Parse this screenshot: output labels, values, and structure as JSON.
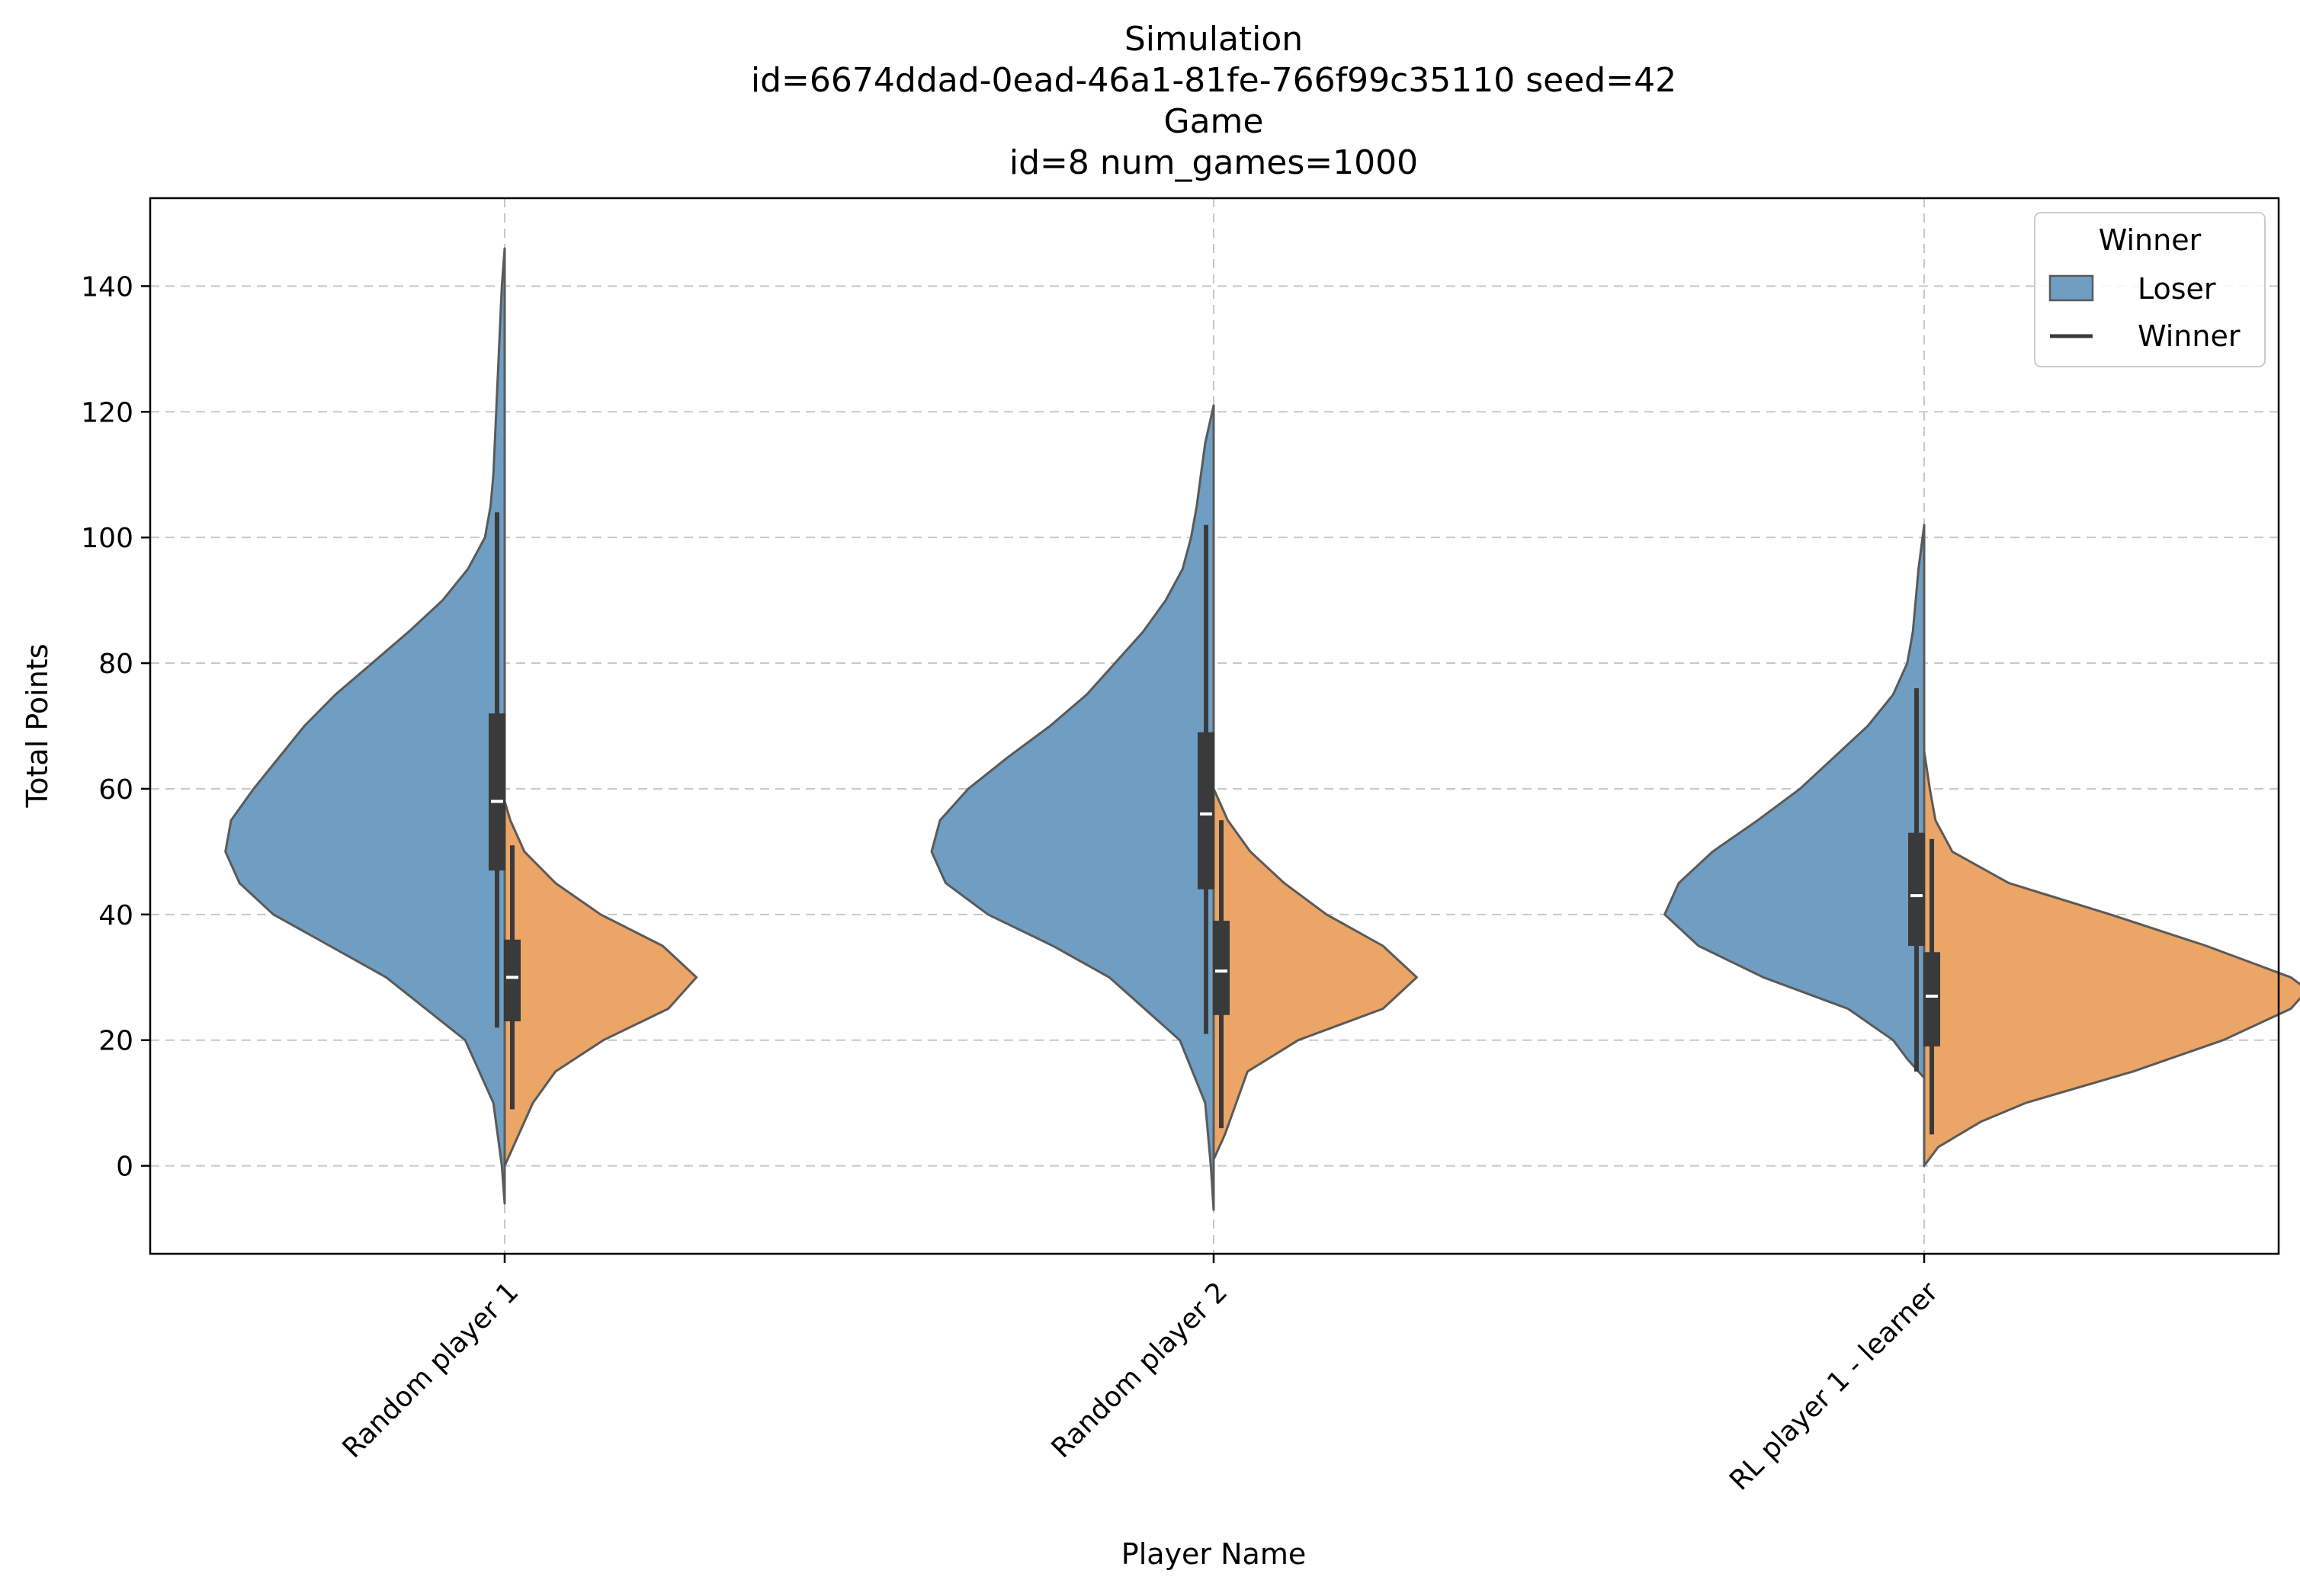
{
  "chart_data": {
    "type": "violin",
    "split": true,
    "title_lines": [
      "Simulation",
      "id=6674ddad-0ead-46a1-81fe-766f99c35110 seed=42",
      "Game",
      "id=8 num_games=1000"
    ],
    "xlabel": "Player Name",
    "ylabel": "Total Points",
    "categories": [
      "Random player 1",
      "Random player 2",
      "RL player 1 - learner"
    ],
    "ylim": [
      -14,
      154
    ],
    "yticks": [
      0,
      20,
      40,
      60,
      80,
      100,
      120,
      140
    ],
    "grid": true,
    "legend": {
      "title": "Winner",
      "position": "top-right",
      "entries": [
        {
          "label": "Loser",
          "kind": "patch"
        },
        {
          "label": "Winner",
          "kind": "line"
        }
      ]
    },
    "colors": {
      "loser": "#6f9ec2",
      "winner": "#eba566",
      "outline": "#5a5a5a",
      "box": "#3a3a3a"
    },
    "series": [
      {
        "name": "Loser",
        "side": "left",
        "violins": [
          {
            "category": "Random player 1",
            "profile": [
              [
                -6,
                0.0
              ],
              [
                0,
                0.01
              ],
              [
                10,
                0.04
              ],
              [
                20,
                0.14
              ],
              [
                30,
                0.42
              ],
              [
                35,
                0.62
              ],
              [
                40,
                0.82
              ],
              [
                45,
                0.94
              ],
              [
                50,
                0.99
              ],
              [
                55,
                0.97
              ],
              [
                60,
                0.89
              ],
              [
                65,
                0.8
              ],
              [
                70,
                0.71
              ],
              [
                75,
                0.6
              ],
              [
                80,
                0.47
              ],
              [
                85,
                0.34
              ],
              [
                90,
                0.22
              ],
              [
                95,
                0.13
              ],
              [
                100,
                0.07
              ],
              [
                105,
                0.05
              ],
              [
                110,
                0.04
              ],
              [
                120,
                0.03
              ],
              [
                130,
                0.02
              ],
              [
                140,
                0.01
              ],
              [
                146,
                0.0
              ]
            ],
            "box": {
              "q1": 47,
              "median": 58,
              "q3": 72,
              "whisker_low": 22,
              "whisker_high": 104
            }
          },
          {
            "category": "Random player 2",
            "profile": [
              [
                -7,
                0.0
              ],
              [
                0,
                0.01
              ],
              [
                10,
                0.03
              ],
              [
                20,
                0.12
              ],
              [
                30,
                0.37
              ],
              [
                35,
                0.57
              ],
              [
                40,
                0.8
              ],
              [
                45,
                0.95
              ],
              [
                50,
                1.0
              ],
              [
                55,
                0.97
              ],
              [
                60,
                0.87
              ],
              [
                65,
                0.73
              ],
              [
                70,
                0.58
              ],
              [
                75,
                0.45
              ],
              [
                80,
                0.35
              ],
              [
                85,
                0.25
              ],
              [
                90,
                0.17
              ],
              [
                95,
                0.11
              ],
              [
                100,
                0.08
              ],
              [
                105,
                0.06
              ],
              [
                110,
                0.045
              ],
              [
                115,
                0.03
              ],
              [
                121,
                0.0
              ]
            ],
            "box": {
              "q1": 44,
              "median": 56,
              "q3": 69,
              "whisker_low": 21,
              "whisker_high": 102
            }
          },
          {
            "category": "RL player 1 - learner",
            "profile": [
              [
                14,
                0.0
              ],
              [
                17,
                0.06
              ],
              [
                20,
                0.11
              ],
              [
                25,
                0.27
              ],
              [
                30,
                0.57
              ],
              [
                35,
                0.8
              ],
              [
                40,
                0.92
              ],
              [
                45,
                0.87
              ],
              [
                50,
                0.75
              ],
              [
                55,
                0.59
              ],
              [
                60,
                0.44
              ],
              [
                65,
                0.32
              ],
              [
                70,
                0.2
              ],
              [
                75,
                0.11
              ],
              [
                80,
                0.06
              ],
              [
                85,
                0.04
              ],
              [
                90,
                0.03
              ],
              [
                95,
                0.02
              ],
              [
                102,
                0.0
              ]
            ],
            "box": {
              "q1": 35,
              "median": 43,
              "q3": 53,
              "whisker_low": 15,
              "whisker_high": 76
            }
          }
        ]
      },
      {
        "name": "Winner",
        "side": "right",
        "violins": [
          {
            "category": "Random player 1",
            "profile": [
              [
                0,
                0.0
              ],
              [
                5,
                0.05
              ],
              [
                10,
                0.1
              ],
              [
                15,
                0.18
              ],
              [
                20,
                0.35
              ],
              [
                25,
                0.58
              ],
              [
                30,
                0.68
              ],
              [
                35,
                0.56
              ],
              [
                40,
                0.34
              ],
              [
                45,
                0.18
              ],
              [
                50,
                0.07
              ],
              [
                55,
                0.02
              ],
              [
                58,
                0.0
              ]
            ],
            "box": {
              "q1": 23,
              "median": 30,
              "q3": 36,
              "whisker_low": 9,
              "whisker_high": 51
            }
          },
          {
            "category": "Random player 2",
            "profile": [
              [
                1,
                0.0
              ],
              [
                5,
                0.04
              ],
              [
                10,
                0.08
              ],
              [
                15,
                0.12
              ],
              [
                20,
                0.3
              ],
              [
                25,
                0.6
              ],
              [
                30,
                0.72
              ],
              [
                35,
                0.6
              ],
              [
                40,
                0.4
              ],
              [
                45,
                0.25
              ],
              [
                50,
                0.13
              ],
              [
                55,
                0.05
              ],
              [
                60,
                0.0
              ]
            ],
            "box": {
              "q1": 24,
              "median": 31,
              "q3": 39,
              "whisker_low": 6,
              "whisker_high": 55
            }
          },
          {
            "category": "RL player 1 - learner",
            "profile": [
              [
                0,
                0.0
              ],
              [
                3,
                0.05
              ],
              [
                7,
                0.2
              ],
              [
                10,
                0.36
              ],
              [
                15,
                0.74
              ],
              [
                20,
                1.06
              ],
              [
                25,
                1.3
              ],
              [
                28,
                1.36
              ],
              [
                30,
                1.3
              ],
              [
                35,
                1.0
              ],
              [
                40,
                0.66
              ],
              [
                45,
                0.3
              ],
              [
                50,
                0.1
              ],
              [
                55,
                0.04
              ],
              [
                60,
                0.02
              ],
              [
                66,
                0.0
              ]
            ],
            "box": {
              "q1": 19,
              "median": 27,
              "q3": 34,
              "whisker_low": 5,
              "whisker_high": 52
            }
          }
        ]
      }
    ]
  }
}
